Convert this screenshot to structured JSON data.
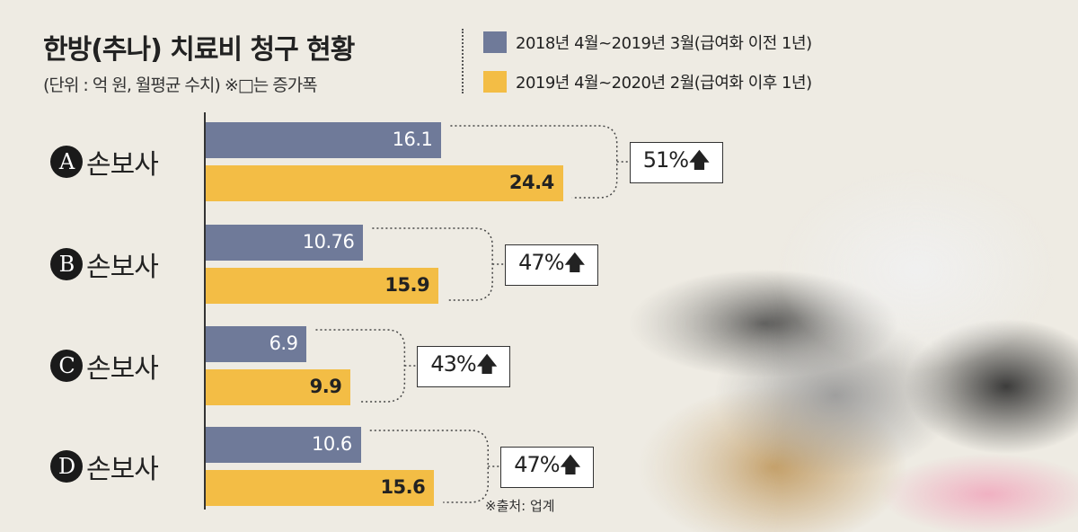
{
  "chart_data": {
    "type": "bar",
    "orientation": "horizontal",
    "title": "한방(추나) 치료비 청구 현황",
    "subtitle": "(단위 : 억 원, 월평균 수치)  ※□는 증가폭",
    "categories": [
      {
        "letter": "A",
        "label": "손보사"
      },
      {
        "letter": "B",
        "label": "손보사"
      },
      {
        "letter": "C",
        "label": "손보사"
      },
      {
        "letter": "D",
        "label": "손보사"
      }
    ],
    "series": [
      {
        "name": "2018년 4월~2019년 3월(급여화 이전 1년)",
        "color": "#6f7a99",
        "values": [
          16.1,
          10.76,
          6.9,
          10.6
        ],
        "labels": [
          "16.1",
          "10.76",
          "6.9",
          "10.6"
        ]
      },
      {
        "name": "2019년 4월~2020년 2월(급여화 이후 1년)",
        "color": "#f3bd45",
        "values": [
          24.4,
          15.9,
          9.9,
          15.6
        ],
        "labels": [
          "24.4",
          "15.9",
          "9.9",
          "15.6"
        ]
      }
    ],
    "increases": [
      "51%🡅",
      "47%🡅",
      "43%🡅",
      "47%🡅"
    ],
    "xlim": [
      0,
      25
    ],
    "legend": "top-right",
    "source": "※출처: 업계"
  }
}
